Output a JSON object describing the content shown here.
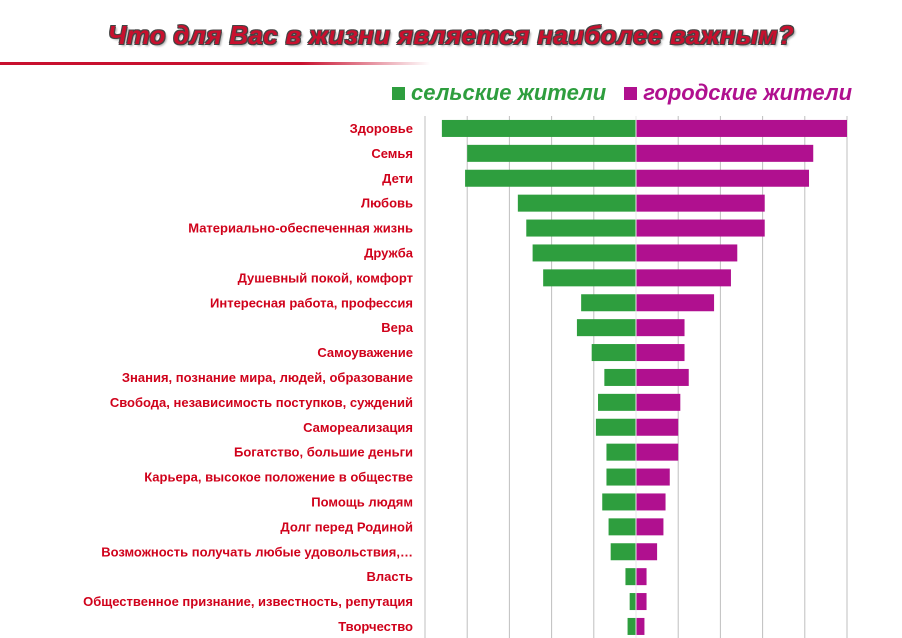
{
  "title": "Что для Вас в жизни является наиболее важным?",
  "colors": {
    "title": "#c8102e",
    "labels": "#d0021b",
    "rural": "#2e9e3e",
    "urban": "#b0108f",
    "grid": "#bfbfbf"
  },
  "chart_data": {
    "type": "bar",
    "orientation": "horizontal-diverging",
    "title": "Что для Вас в жизни является наиболее важным?",
    "xlabel": "",
    "ylabel": "",
    "grid": true,
    "legend_position": "top-right",
    "xlim": [
      -100,
      120
    ],
    "categories": [
      "Здоровье",
      "Семья",
      "Дети",
      "Любовь",
      "Материально-обеспеченная жизнь",
      "Дружба",
      "Душевный покой, комфорт",
      "Интересная работа, профессия",
      "Вера",
      "Самоуважение",
      "Знания, познание мира, людей, образование",
      "Свобода, независимость поступков, суждений",
      "Самореализация",
      "Богатство, большие деньги",
      "Карьера, высокое положение в обществе",
      "Помощь людям",
      "Долг перед Родиной",
      "Возможность получать любые удовольствия,…",
      "Власть",
      "Общественное признание, известность, репутация",
      "Творчество"
    ],
    "series": [
      {
        "name": "сельские жители",
        "values": [
          92,
          80,
          81,
          56,
          52,
          49,
          44,
          26,
          28,
          21,
          15,
          18,
          19,
          14,
          14,
          16,
          13,
          12,
          5,
          3,
          4
        ]
      },
      {
        "name": "городские жители",
        "values": [
          100,
          84,
          82,
          61,
          61,
          48,
          45,
          37,
          23,
          23,
          25,
          21,
          20,
          20,
          16,
          14,
          13,
          10,
          5,
          5,
          4
        ]
      }
    ]
  }
}
